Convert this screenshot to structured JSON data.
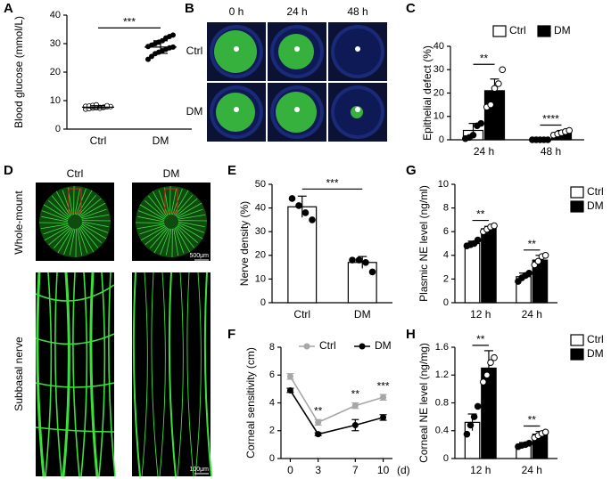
{
  "chart_data": [
    {
      "type": "dot",
      "panel": "A",
      "ylabel": "Blood glucose (mmol/L)",
      "categories": [
        "Ctrl",
        "DM"
      ],
      "colors": [
        "#ffffff",
        "#000000"
      ],
      "points": [
        [
          7.0,
          7.2,
          7.4,
          7.5,
          7.6,
          7.7,
          7.8,
          7.9,
          8.0,
          8.1,
          8.3,
          8.5,
          7.3,
          7.6,
          8.2
        ],
        [
          24.5,
          25.5,
          26.5,
          27,
          27.5,
          28,
          28.5,
          28.8,
          29,
          29.5,
          30,
          30.5,
          31,
          32,
          32.5,
          33
        ]
      ],
      "means": [
        7.7,
        28.8
      ],
      "sd": [
        0.5,
        2.2
      ],
      "ylim": [
        0,
        40
      ],
      "yticks": [
        0,
        10,
        20,
        30,
        40
      ],
      "annotations": [
        {
          "text": "***"
        }
      ]
    },
    {
      "type": "bar",
      "panel": "C",
      "ylabel": "Epithelial defect (%)",
      "categories": [
        "24 h",
        "48 h"
      ],
      "legend": "top",
      "series": [
        {
          "name": "Ctrl",
          "color": "#ffffff",
          "values": [
            4,
            0
          ],
          "errors": [
            3,
            0.3
          ],
          "points": [
            [
              0.5,
              1,
              2,
              6,
              7
            ],
            [
              0,
              0,
              0,
              0,
              0
            ]
          ]
        },
        {
          "name": "DM",
          "color": "#000000",
          "values": [
            21,
            3
          ],
          "errors": [
            5,
            1
          ],
          "points": [
            [
              14,
              15,
              22,
              24,
              30
            ],
            [
              2,
              2.5,
              3,
              3.5,
              4
            ]
          ]
        }
      ],
      "ylim": [
        0,
        40
      ],
      "yticks": [
        0,
        10,
        20,
        30,
        40
      ],
      "annotations": [
        {
          "text": "**",
          "category": "24 h"
        },
        {
          "text": "****",
          "category": "48 h"
        }
      ]
    },
    {
      "type": "bar",
      "panel": "E",
      "ylabel": "Nerve density (%)",
      "categories": [
        "Ctrl",
        "DM"
      ],
      "series": [
        {
          "color": "#ffffff",
          "values": [
            40.5,
            17
          ],
          "errors": [
            4.5,
            2.5
          ],
          "points": [
            [
              44,
              41,
              38,
              35
            ],
            [
              18,
              18,
              17,
              13
            ]
          ]
        }
      ],
      "ylim": [
        0,
        50
      ],
      "yticks": [
        0,
        10,
        20,
        30,
        40,
        50
      ],
      "annotations": [
        {
          "text": "***"
        }
      ]
    },
    {
      "type": "line",
      "panel": "F",
      "ylabel": "Corneal sensitivity (cm)",
      "xlabel": "(d)",
      "x": [
        0,
        3,
        7,
        10
      ],
      "legend": "top",
      "series": [
        {
          "name": "Ctrl",
          "color": "#a6a6a6",
          "values": [
            5.9,
            2.6,
            3.8,
            4.4
          ],
          "errors": [
            0.2,
            0.2,
            0.2,
            0.2
          ]
        },
        {
          "name": "DM",
          "color": "#000000",
          "values": [
            4.9,
            1.75,
            2.4,
            2.95
          ],
          "errors": [
            0.15,
            0.1,
            0.4,
            0.2
          ]
        }
      ],
      "xlim": [
        -1,
        11
      ],
      "xticks": [
        0,
        3,
        7,
        10
      ],
      "ylim": [
        0,
        8
      ],
      "yticks": [
        0,
        2,
        4,
        6,
        8
      ],
      "annotations": [
        {
          "text": "**",
          "x": 3
        },
        {
          "text": "**",
          "x": 7
        },
        {
          "text": "***",
          "x": 10
        }
      ]
    },
    {
      "type": "bar",
      "panel": "G",
      "ylabel": "Plasmic NE level (ng/ml)",
      "categories": [
        "12 h",
        "24 h"
      ],
      "legend": "right",
      "series": [
        {
          "name": "Ctrl",
          "color": "#ffffff",
          "values": [
            5.0,
            2.2
          ],
          "errors": [
            0.2,
            0.3
          ],
          "points": [
            [
              4.8,
              4.9,
              5.0,
              5.3
            ],
            [
              1.8,
              2.1,
              2.3,
              2.5
            ]
          ]
        },
        {
          "name": "DM",
          "color": "#000000",
          "values": [
            6.25,
            3.6
          ],
          "errors": [
            0.2,
            0.4
          ],
          "points": [
            [
              6.0,
              6.2,
              6.4,
              6.5
            ],
            [
              3.2,
              3.5,
              3.9,
              4.0
            ]
          ]
        }
      ],
      "ylim": [
        0,
        10
      ],
      "yticks": [
        0,
        2,
        4,
        6,
        8,
        10
      ],
      "annotations": [
        {
          "text": "**",
          "category": "12 h"
        },
        {
          "text": "**",
          "category": "24 h"
        }
      ]
    },
    {
      "type": "bar",
      "panel": "H",
      "ylabel": "Corneal NE level (ng/mg)",
      "categories": [
        "12 h",
        "24 h"
      ],
      "legend": "right",
      "series": [
        {
          "name": "Ctrl",
          "color": "#ffffff",
          "values": [
            0.52,
            0.2
          ],
          "errors": [
            0.12,
            0.03
          ],
          "points": [
            [
              0.35,
              0.48,
              0.6,
              0.75
            ],
            [
              0.17,
              0.19,
              0.2,
              0.22
            ]
          ]
        },
        {
          "name": "DM",
          "color": "#000000",
          "values": [
            1.3,
            0.35
          ],
          "errors": [
            0.25,
            0.04
          ],
          "points": [
            [
              1.1,
              1.2,
              1.38,
              1.45
            ],
            [
              0.3,
              0.33,
              0.36,
              0.38
            ]
          ]
        }
      ],
      "ylim": [
        0,
        1.6
      ],
      "yticks": [
        0,
        0.4,
        0.8,
        1.2,
        1.6
      ],
      "annotations": [
        {
          "text": "**",
          "category": "12 h"
        },
        {
          "text": "**",
          "category": "24 h"
        }
      ]
    }
  ],
  "images": [
    {
      "panel": "B",
      "columns": [
        "0 h",
        "24 h",
        "48 h"
      ],
      "rows": [
        "Ctrl",
        "DM"
      ]
    },
    {
      "panel": "D",
      "columns": [
        "Ctrl",
        "DM"
      ],
      "rows": [
        "Whole-mount",
        "Subbasal nerve"
      ],
      "scale_bars": [
        "500μm",
        "100μm"
      ]
    }
  ]
}
